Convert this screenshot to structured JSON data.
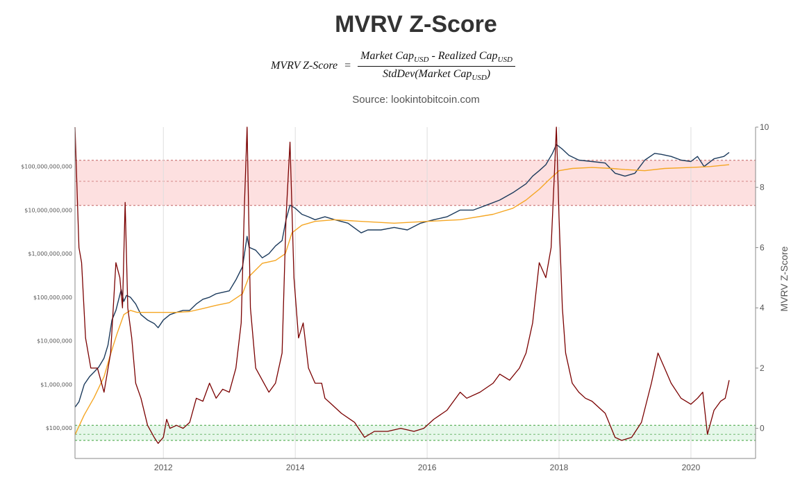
{
  "title": "MVRV Z-Score",
  "formula": {
    "lhs": "MVRV Z-Score",
    "eq": "=",
    "num_a": "Market Cap",
    "num_sep": " - ",
    "num_b": "Realized Cap",
    "den": "StdDev(Market Cap",
    "den_close": ")",
    "sub": "USD"
  },
  "source": "Source: lookintobitcoin.com",
  "chart_data": {
    "type": "line",
    "x_axis": {
      "ticks": [
        2012,
        2014,
        2016,
        2018,
        2020
      ],
      "range": [
        2010.66,
        2020.98
      ]
    },
    "y_left": {
      "scale": "log",
      "range": [
        20000,
        800000000000
      ],
      "ticks": [
        100000,
        1000000,
        10000000,
        100000000,
        1000000000,
        10000000000,
        100000000000
      ],
      "tick_labels": [
        "$100,000",
        "$1,000,000",
        "$10,000,000",
        "$100,000,000",
        "$1,000,000,000",
        "$10,000,000,000",
        "$100,000,000,000"
      ]
    },
    "y_right": {
      "label": "MVRV Z-Score",
      "range": [
        -1,
        10
      ],
      "ticks": [
        0,
        2,
        4,
        6,
        8,
        10
      ]
    },
    "bands": [
      {
        "zone": "red",
        "z_low": 7.4,
        "z_mid": 8.2,
        "z_high": 8.9,
        "color": "#fde0e0",
        "line": "#c06060"
      },
      {
        "zone": "green",
        "z_low": -0.4,
        "z_mid": -0.2,
        "z_high": 0.1,
        "color": "#e6f7ea",
        "line": "#3aa03a"
      }
    ],
    "series": [
      {
        "color": "#1b3a5c",
        "axis": "left",
        "x": [
          2010.66,
          2010.72,
          2010.8,
          2010.88,
          2010.96,
          2011.02,
          2011.1,
          2011.16,
          2011.22,
          2011.28,
          2011.36,
          2011.4,
          2011.44,
          2011.5,
          2011.58,
          2011.66,
          2011.76,
          2011.86,
          2011.92,
          2012.0,
          2012.1,
          2012.2,
          2012.3,
          2012.4,
          2012.5,
          2012.6,
          2012.7,
          2012.8,
          2012.9,
          2013.0,
          2013.1,
          2013.2,
          2013.27,
          2013.3,
          2013.4,
          2013.5,
          2013.6,
          2013.7,
          2013.8,
          2013.86,
          2013.92,
          2014.0,
          2014.1,
          2014.2,
          2014.3,
          2014.45,
          2014.6,
          2014.8,
          2015.0,
          2015.1,
          2015.3,
          2015.5,
          2015.7,
          2015.9,
          2016.1,
          2016.3,
          2016.5,
          2016.7,
          2016.9,
          2017.1,
          2017.3,
          2017.5,
          2017.6,
          2017.7,
          2017.8,
          2017.9,
          2017.96,
          2018.05,
          2018.15,
          2018.3,
          2018.5,
          2018.7,
          2018.85,
          2019.0,
          2019.15,
          2019.3,
          2019.45,
          2019.55,
          2019.7,
          2019.85,
          2020.0,
          2020.1,
          2020.2,
          2020.35,
          2020.5,
          2020.58
        ],
        "y": [
          300000,
          400000,
          1000000,
          1500000,
          2000000,
          2500000,
          4000000,
          8000000,
          30000000,
          50000000,
          150000000,
          80000000,
          110000000,
          100000000,
          70000000,
          40000000,
          30000000,
          25000000,
          20000000,
          30000000,
          40000000,
          45000000,
          50000000,
          50000000,
          70000000,
          90000000,
          100000000,
          120000000,
          130000000,
          140000000,
          250000000,
          500000000,
          2500000000,
          1400000000,
          1200000000,
          800000000,
          1000000000,
          1500000000,
          2000000000,
          6000000000,
          13000000000,
          11000000000,
          8000000000,
          7000000000,
          6000000000,
          7000000000,
          6000000000,
          5000000000,
          3000000000,
          3500000000,
          3500000000,
          4000000000,
          3500000000,
          5000000000,
          6000000000,
          7000000000,
          10000000000,
          10000000000,
          13000000000,
          17000000000,
          25000000000,
          40000000000,
          60000000000,
          80000000000,
          110000000000,
          200000000000,
          320000000000,
          250000000000,
          180000000000,
          140000000000,
          130000000000,
          120000000000,
          70000000000,
          60000000000,
          70000000000,
          140000000000,
          200000000000,
          190000000000,
          170000000000,
          140000000000,
          130000000000,
          170000000000,
          100000000000,
          150000000000,
          170000000000,
          210000000000
        ]
      },
      {
        "color": "#f5a623",
        "axis": "left",
        "x": [
          2010.66,
          2010.8,
          2010.95,
          2011.1,
          2011.2,
          2011.3,
          2011.4,
          2011.5,
          2011.6,
          2011.8,
          2012.0,
          2012.2,
          2012.4,
          2012.6,
          2012.8,
          2013.0,
          2013.2,
          2013.3,
          2013.5,
          2013.7,
          2013.85,
          2013.95,
          2014.1,
          2014.3,
          2014.6,
          2015.0,
          2015.5,
          2016.0,
          2016.5,
          2017.0,
          2017.3,
          2017.5,
          2017.7,
          2017.85,
          2018.0,
          2018.2,
          2018.5,
          2018.8,
          2019.0,
          2019.3,
          2019.6,
          2020.0,
          2020.3,
          2020.58
        ],
        "y": [
          70000,
          200000,
          500000,
          1500000,
          5000000,
          15000000,
          40000000,
          50000000,
          45000000,
          45000000,
          45000000,
          45000000,
          47000000,
          55000000,
          65000000,
          75000000,
          120000000,
          300000000,
          600000000,
          700000000,
          1000000000,
          3000000000,
          4500000000,
          5500000000,
          6000000000,
          5500000000,
          5000000000,
          5500000000,
          6000000000,
          8000000000,
          11000000000,
          17000000000,
          30000000000,
          50000000000,
          80000000000,
          90000000000,
          95000000000,
          90000000000,
          85000000000,
          80000000000,
          90000000000,
          95000000000,
          100000000000,
          110000000000
        ]
      },
      {
        "color": "#7a0000",
        "axis": "right",
        "x": [
          2010.66,
          2010.72,
          2010.76,
          2010.82,
          2010.9,
          2011.0,
          2011.1,
          2011.2,
          2011.28,
          2011.34,
          2011.38,
          2011.42,
          2011.46,
          2011.52,
          2011.58,
          2011.66,
          2011.76,
          2011.86,
          2011.92,
          2012.0,
          2012.05,
          2012.1,
          2012.2,
          2012.3,
          2012.4,
          2012.5,
          2012.6,
          2012.7,
          2012.8,
          2012.9,
          2013.0,
          2013.1,
          2013.18,
          2013.23,
          2013.27,
          2013.32,
          2013.4,
          2013.5,
          2013.6,
          2013.7,
          2013.8,
          2013.86,
          2013.92,
          2013.98,
          2014.05,
          2014.12,
          2014.2,
          2014.3,
          2014.4,
          2014.45,
          2014.55,
          2014.7,
          2014.9,
          2015.05,
          2015.2,
          2015.4,
          2015.6,
          2015.8,
          2015.95,
          2016.1,
          2016.3,
          2016.5,
          2016.6,
          2016.8,
          2017.0,
          2017.1,
          2017.25,
          2017.4,
          2017.5,
          2017.6,
          2017.7,
          2017.8,
          2017.88,
          2017.93,
          2017.96,
          2018.0,
          2018.05,
          2018.1,
          2018.2,
          2018.3,
          2018.4,
          2018.5,
          2018.7,
          2018.85,
          2018.95,
          2019.1,
          2019.25,
          2019.4,
          2019.5,
          2019.6,
          2019.7,
          2019.85,
          2020.0,
          2020.1,
          2020.18,
          2020.25,
          2020.35,
          2020.45,
          2020.52,
          2020.58
        ],
        "y": [
          10.0,
          6.0,
          5.5,
          3.0,
          2.0,
          2.0,
          1.2,
          2.5,
          5.5,
          5.0,
          4.0,
          7.5,
          4.0,
          3.0,
          1.5,
          1.0,
          0.1,
          -0.3,
          -0.5,
          -0.3,
          0.3,
          0.0,
          0.1,
          0.0,
          0.2,
          1.0,
          0.9,
          1.5,
          1.0,
          1.3,
          1.2,
          2.0,
          3.5,
          7.5,
          10.0,
          4.0,
          2.0,
          1.6,
          1.2,
          1.5,
          2.5,
          7.0,
          9.5,
          5.0,
          3.0,
          3.5,
          2.0,
          1.5,
          1.5,
          1.0,
          0.8,
          0.5,
          0.2,
          -0.3,
          -0.1,
          -0.1,
          0.0,
          -0.1,
          0.0,
          0.3,
          0.6,
          1.2,
          1.0,
          1.2,
          1.5,
          1.8,
          1.6,
          2.0,
          2.5,
          3.5,
          5.5,
          5.0,
          6.0,
          8.5,
          10.0,
          7.0,
          4.0,
          2.5,
          1.5,
          1.2,
          1.0,
          0.9,
          0.5,
          -0.3,
          -0.4,
          -0.3,
          0.2,
          1.5,
          2.5,
          2.0,
          1.5,
          1.0,
          0.8,
          1.0,
          1.2,
          -0.2,
          0.6,
          0.9,
          1.0,
          1.6
        ]
      }
    ]
  }
}
